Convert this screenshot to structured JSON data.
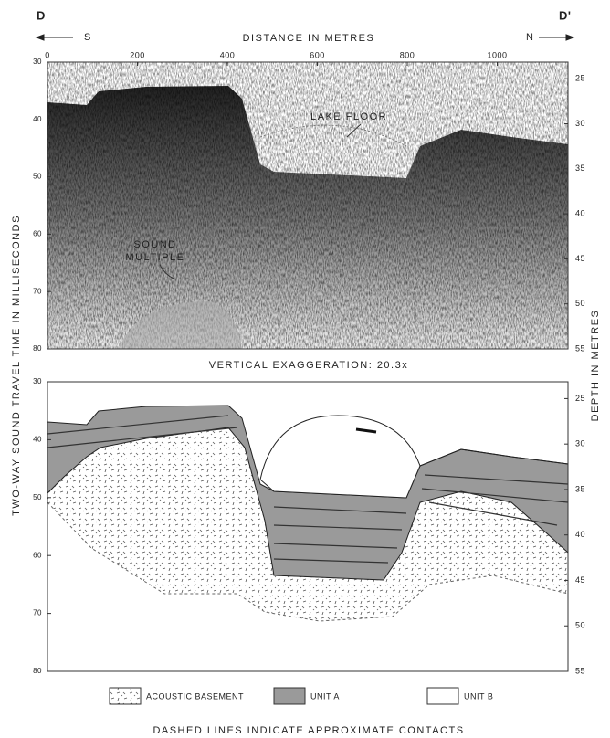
{
  "header": {
    "left_end": "D",
    "right_end": "D'",
    "left_direction": "S",
    "right_direction": "N",
    "x_axis_title": "DISTANCE IN METRES"
  },
  "x_axis": {
    "ticks": [
      0,
      200,
      400,
      600,
      800,
      1000
    ]
  },
  "time_axis": {
    "title": "TWO-WAY SOUND TRAVEL TIME IN MILLISECONDS",
    "ticks": [
      30,
      40,
      50,
      60,
      70,
      80
    ]
  },
  "depth_axis": {
    "title": "DEPTH IN METRES",
    "ticks": [
      25,
      30,
      35,
      40,
      45,
      50,
      55
    ]
  },
  "annotations": {
    "lake_floor": "LAKE FLOOR",
    "sound_multiple": [
      "SOUND",
      "MULTIPLE"
    ]
  },
  "exaggeration": "VERTICAL EXAGGERATION: 20.3x",
  "legend": [
    "ACOUSTIC BASEMENT",
    "UNIT A",
    "UNIT B"
  ],
  "footnote": "DASHED LINES INDICATE APPROXIMATE CONTACTS"
}
